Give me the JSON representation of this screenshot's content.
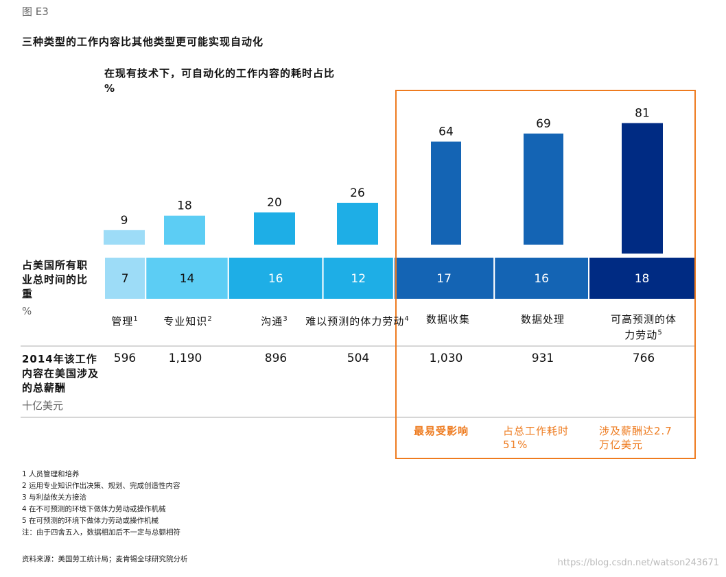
{
  "figure_label": "图 E3",
  "title": "三种类型的工作内容比其他类型更可能实现自动化",
  "chart_data": {
    "type": "bar",
    "title": "在现有技术下，可自动化的工作内容的耗时占比",
    "ylabel": "%",
    "categories": [
      "管理",
      "专业知识",
      "沟通",
      "难以预测的体力劳动",
      "数据收集",
      "数据处理",
      "可高预测的体力劳动"
    ],
    "category_footnotes": [
      "1",
      "2",
      "3",
      "4",
      "",
      "",
      "5"
    ],
    "values": [
      9,
      18,
      20,
      26,
      64,
      69,
      81
    ],
    "ylim": [
      0,
      100
    ],
    "time_share_label": "占美国所有职业总时间的比重",
    "time_share_unit": "%",
    "time_share": [
      7,
      14,
      16,
      12,
      17,
      16,
      18
    ],
    "wages_label": "2014年该工作内容在美国涉及的总薪酬",
    "wages_unit": "十亿美元",
    "wages": [
      "596",
      "1,190",
      "896",
      "504",
      "1,030",
      "931",
      "766"
    ],
    "colors": [
      "#9ddcf7",
      "#5ccdf4",
      "#1eaee6",
      "#1eaee6",
      "#1464b4",
      "#1464b4",
      "#002b83"
    ]
  },
  "highlight": {
    "border_color": "#ee7b1f",
    "notes": [
      "最易受影响",
      "占总工作耗时51%",
      "涉及薪酬达2.7万亿美元"
    ]
  },
  "footnotes": [
    "1 人员管理和培养",
    "2 运用专业知识作出决策、规划、完成创造性内容",
    "3 与利益攸关方接洽",
    "4 在不可预测的环境下做体力劳动或操作机械",
    "5 在可预测的环境下做体力劳动或操作机械",
    "注：由于四舍五入，数据相加后不一定与总额相符"
  ],
  "source": "资料来源：美国劳工统计局；麦肯锡全球研究院分析",
  "watermark": "https://blog.csdn.net/watson243671"
}
